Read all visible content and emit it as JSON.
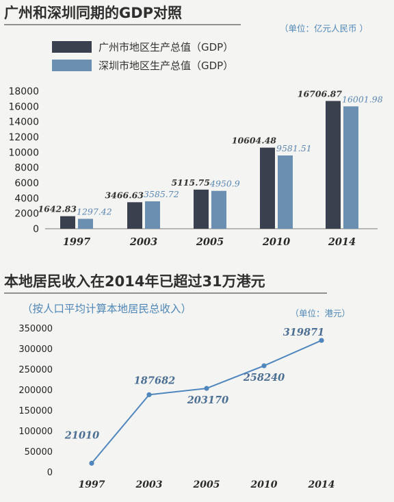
{
  "colors": {
    "guangzhou": "#3a404e",
    "shenzhen": "#6a8fb0",
    "line": "#4f86bd",
    "accent": "#4f87b7"
  },
  "chart_data": [
    {
      "type": "bar",
      "title": "广州和深圳同期的GDP对照",
      "unit": "（单位：亿元人民币 ）",
      "categories": [
        "1997",
        "2003",
        "2005",
        "2010",
        "2014"
      ],
      "series": [
        {
          "name": "广州市地区生产总值（GDP）",
          "values": [
            1642.83,
            3466.63,
            5115.75,
            10604.48,
            16706.87
          ]
        },
        {
          "name": "深圳市地区生产总值（GDP）",
          "values": [
            1297.42,
            3585.72,
            4950.9,
            9581.51,
            16001.98
          ]
        }
      ],
      "value_labels": [
        [
          "1642.83",
          "3466.63",
          "5115.75",
          "10604.48",
          "16706.87"
        ],
        [
          "1297.42",
          "3585.72",
          "4950.9",
          "9581.51",
          "16001.98"
        ]
      ],
      "ylim": [
        0,
        18000
      ],
      "yticks": [
        0,
        2000,
        4000,
        6000,
        8000,
        10000,
        12000,
        14000,
        16000,
        18000
      ],
      "legend": "top-left",
      "grid": false
    },
    {
      "type": "line",
      "title": "本地居民收入在2014年已超过31万港元",
      "subtitle": "（按人口平均计算本地居民总收入）",
      "unit": "（单位：港元）",
      "categories": [
        "1997",
        "2003",
        "2005",
        "2010",
        "2014"
      ],
      "values": [
        21010,
        187682,
        203170,
        258240,
        319871
      ],
      "value_labels": [
        "21010",
        "187682",
        "203170",
        "258240",
        "319871"
      ],
      "ylim": [
        0,
        350000
      ],
      "yticks": [
        0,
        50000,
        100000,
        150000,
        200000,
        250000,
        300000,
        350000
      ],
      "grid": false
    }
  ]
}
